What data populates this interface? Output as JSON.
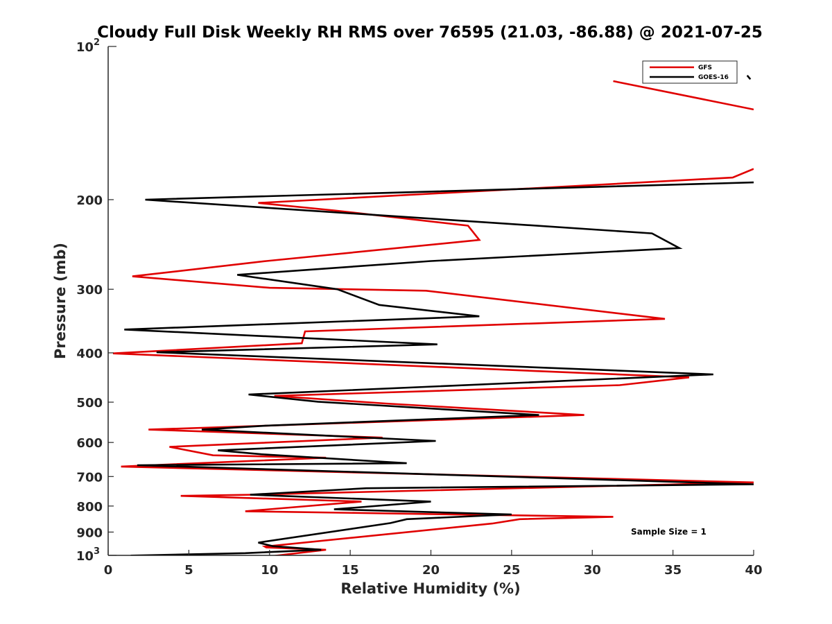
{
  "chart_data": {
    "type": "line",
    "title": "Cloudy Full Disk Weekly RH RMS over 76595 (21.03, -86.88) @ 2021-07-25",
    "xlabel": "Relative Humidity (%)",
    "ylabel": "Pressure (mb)",
    "xlim": [
      0,
      40
    ],
    "ylim": [
      100,
      1000
    ],
    "y_scale": "log",
    "y_reversed": true,
    "grid": false,
    "x_ticks": [
      0,
      5,
      10,
      15,
      20,
      25,
      30,
      35,
      40
    ],
    "x_tick_labels": [
      "0",
      "5",
      "10",
      "15",
      "20",
      "25",
      "30",
      "35",
      "40"
    ],
    "y_ticks_major": [
      {
        "value": 100,
        "base": "10",
        "exp": "2"
      },
      {
        "value": 1000,
        "base": "10",
        "exp": "3"
      }
    ],
    "y_ticks_minor": [
      200,
      300,
      400,
      500,
      600,
      700,
      800,
      900
    ],
    "y_tick_labels": [
      "200",
      "300",
      "400",
      "500",
      "600",
      "700",
      "800",
      "900"
    ],
    "legend_position": "top-right",
    "annotation": "Sample Size = 1",
    "series": [
      {
        "name": "GFS",
        "color": "#e00000",
        "segments": [
          [
            [
              31.3,
              117
            ],
            [
              40,
              133
            ]
          ],
          [
            [
              40,
              174
            ],
            [
              38.7,
              181
            ],
            [
              9.3,
              203
            ],
            [
              14.0,
              210
            ],
            [
              22.3,
              225
            ],
            [
              23.0,
              240
            ],
            [
              9.8,
              264
            ],
            [
              1.5,
              283
            ],
            [
              10.0,
              298
            ],
            [
              19.7,
              302
            ],
            [
              34.5,
              343
            ],
            [
              12.2,
              363
            ],
            [
              12.0,
              383
            ],
            [
              0.3,
              401
            ],
            [
              36.0,
              447
            ],
            [
              31.7,
              463
            ],
            [
              10.3,
              486
            ],
            [
              17.2,
              503
            ],
            [
              29.5,
              530
            ],
            [
              2.5,
              566
            ],
            [
              17.0,
              587
            ],
            [
              3.8,
              612
            ],
            [
              6.5,
              636
            ],
            [
              13.5,
              643
            ],
            [
              0.8,
              669
            ],
            [
              40,
              719
            ],
            [
              9.0,
              760
            ],
            [
              4.5,
              764
            ],
            [
              15.7,
              784
            ],
            [
              8.5,
              819
            ],
            [
              31.3,
              840
            ],
            [
              25.5,
              849
            ],
            [
              23.8,
              866
            ],
            [
              9.7,
              961
            ],
            [
              9.8,
              965
            ],
            [
              13.5,
              975
            ],
            [
              10.2,
              1003
            ]
          ]
        ]
      },
      {
        "name": "GOES-16",
        "color": "#000000",
        "segments": [
          [
            [
              39.6,
              114
            ],
            [
              39.8,
              116
            ]
          ],
          [
            [
              40,
              185
            ],
            [
              2.3,
              200
            ],
            [
              33.7,
              233
            ],
            [
              35.4,
              249
            ],
            [
              20.0,
              264
            ],
            [
              8.0,
              281
            ],
            [
              14.2,
              300
            ],
            [
              16.8,
              322
            ],
            [
              23.0,
              339
            ],
            [
              1.0,
              360
            ],
            [
              20.4,
              385
            ],
            [
              3.0,
              399
            ],
            [
              37.5,
              441
            ],
            [
              8.7,
              483
            ],
            [
              13.0,
              499
            ],
            [
              26.7,
              530
            ],
            [
              9.8,
              556
            ],
            [
              5.8,
              566
            ],
            [
              20.3,
              596
            ],
            [
              6.8,
              622
            ],
            [
              9.5,
              633
            ],
            [
              18.5,
              659
            ],
            [
              1.8,
              665
            ],
            [
              40,
              725
            ],
            [
              16.0,
              738
            ],
            [
              8.8,
              760
            ],
            [
              20.0,
              784
            ],
            [
              14.0,
              812
            ],
            [
              25.0,
              831
            ],
            [
              18.5,
              849
            ],
            [
              17.5,
              864
            ],
            [
              9.3,
              944
            ],
            [
              10.2,
              959
            ],
            [
              13.2,
              975
            ],
            [
              8.5,
              990
            ],
            [
              1.4,
              1001
            ]
          ]
        ]
      }
    ]
  }
}
